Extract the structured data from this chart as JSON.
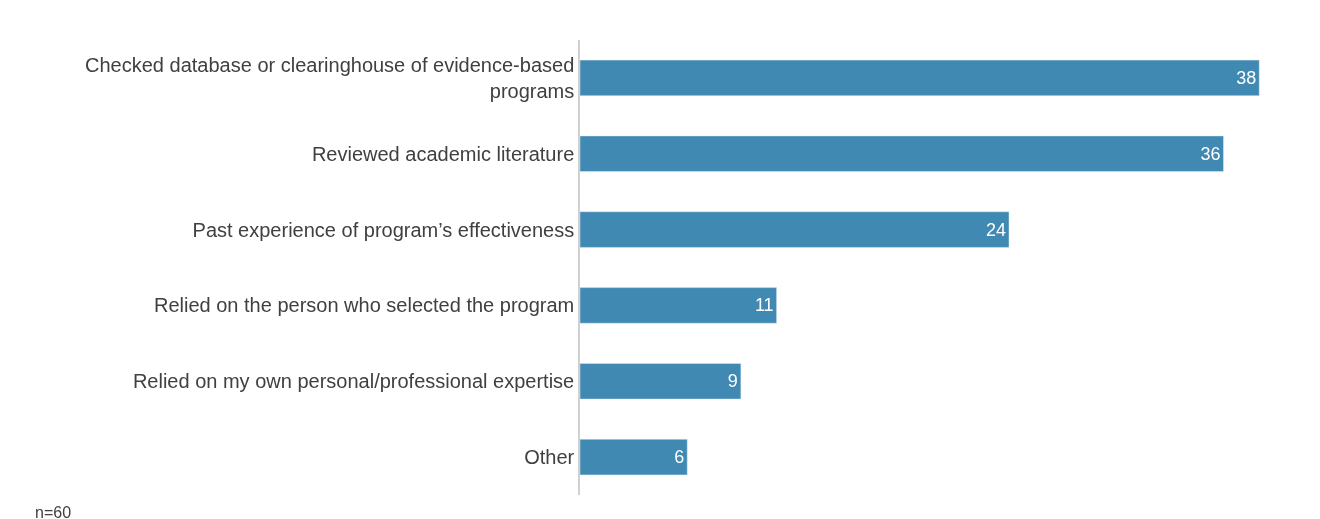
{
  "chart_data": {
    "type": "bar",
    "orientation": "horizontal",
    "categories": [
      "Checked database or clearinghouse of evidence-based programs",
      "Reviewed academic literature",
      "Past experience of program’s effectiveness",
      "Relied on the person who selected the program",
      "Relied on my own personal/professional expertise",
      "Other"
    ],
    "values": [
      38,
      36,
      24,
      11,
      9,
      6
    ],
    "color": "#3f89b3",
    "data_labels": true,
    "tick_labels": "y",
    "annotations": [
      "n=60"
    ]
  }
}
